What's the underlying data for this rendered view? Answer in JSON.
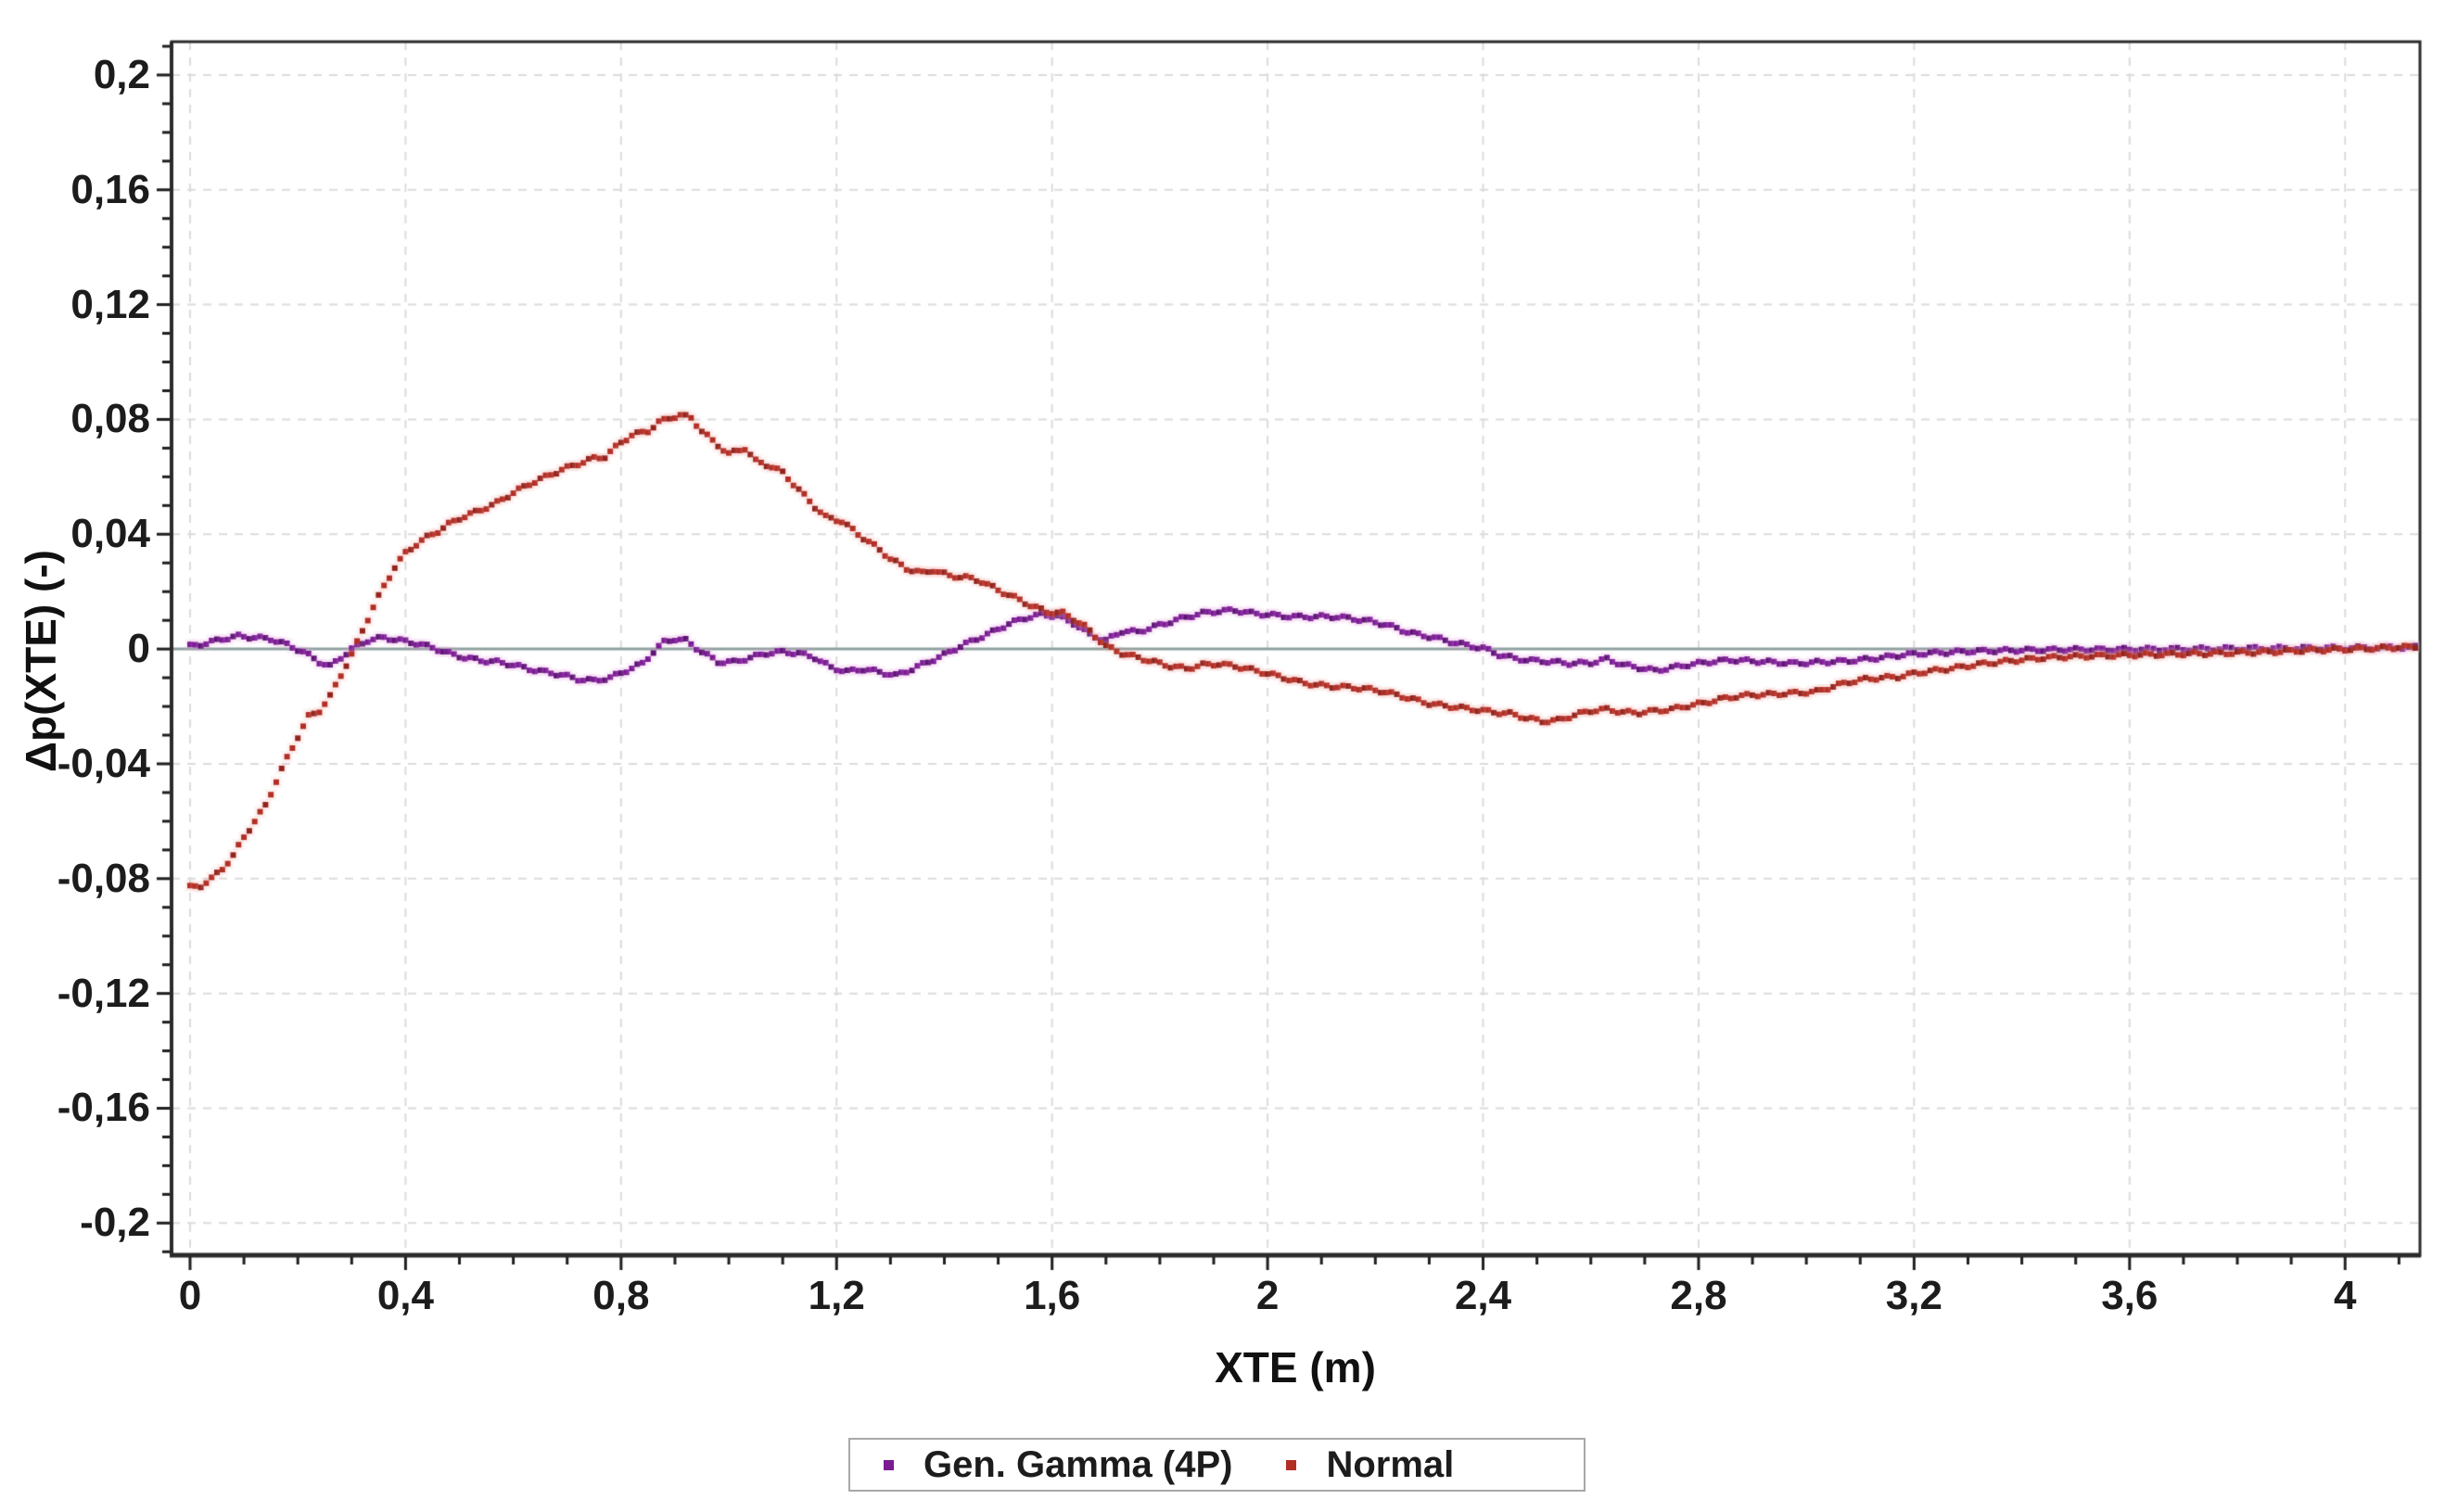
{
  "chart_data": {
    "type": "scatter",
    "title": "",
    "xlabel": "XTE (m)",
    "ylabel": "Δp(XTE) (-)",
    "xlim": [
      -0.0344,
      4.139
    ],
    "ylim": [
      -0.2112,
      0.2116
    ],
    "x_ticks_major": [
      0,
      0.4,
      0.8,
      1.2,
      1.6,
      2,
      2.4,
      2.8,
      3.2,
      3.6,
      4
    ],
    "x_tick_labels": [
      "0",
      "0,4",
      "0,8",
      "1,2",
      "1,6",
      "2",
      "2,4",
      "2,8",
      "3,2",
      "3,6",
      "4"
    ],
    "x_minor_step": 0.1,
    "x_minor_range": [
      0,
      4.1
    ],
    "y_ticks_major": [
      0.2,
      0.16,
      0.12,
      0.08,
      0.04,
      0,
      -0.04,
      -0.08,
      -0.12,
      -0.16,
      -0.2
    ],
    "y_tick_labels": [
      "0,2",
      "0,16",
      "0,12",
      "0,08",
      "0,04",
      "0",
      "-0,04",
      "-0,08",
      "-0,12",
      "-0,16",
      "-0,2"
    ],
    "y_minor_step": 0.01,
    "y_minor_range": [
      -0.21,
      0.21
    ],
    "grid": "major-dashed",
    "grid_color": "#dcdcdc",
    "zero_line_color": "#8ea19f",
    "border_color": "#2b2b2b",
    "tick_color": "#1f1f1f",
    "legend_position": "bottom-center",
    "marker": "square",
    "series": [
      {
        "name": "Gen. Gamma (4P)",
        "color": "#7a1b94",
        "color_dark": "#5e1276",
        "halo": "#eaa0e0",
        "points": [
          [
            0.0,
            0.001
          ],
          [
            0.03,
            0.002
          ],
          [
            0.06,
            0.0035
          ],
          [
            0.09,
            0.0045
          ],
          [
            0.12,
            0.004
          ],
          [
            0.15,
            0.0035
          ],
          [
            0.18,
            0.0015
          ],
          [
            0.21,
            -0.001
          ],
          [
            0.24,
            -0.0045
          ],
          [
            0.26,
            -0.006
          ],
          [
            0.28,
            -0.003
          ],
          [
            0.3,
            0.0
          ],
          [
            0.33,
            0.003
          ],
          [
            0.36,
            0.004
          ],
          [
            0.39,
            0.003
          ],
          [
            0.42,
            0.002
          ],
          [
            0.45,
            0.0005
          ],
          [
            0.48,
            -0.0015
          ],
          [
            0.51,
            -0.003
          ],
          [
            0.54,
            -0.004
          ],
          [
            0.57,
            -0.0045
          ],
          [
            0.6,
            -0.0055
          ],
          [
            0.63,
            -0.007
          ],
          [
            0.66,
            -0.008
          ],
          [
            0.69,
            -0.009
          ],
          [
            0.72,
            -0.0105
          ],
          [
            0.75,
            -0.011
          ],
          [
            0.78,
            -0.01
          ],
          [
            0.81,
            -0.0075
          ],
          [
            0.84,
            -0.005
          ],
          [
            0.86,
            -0.001
          ],
          [
            0.88,
            0.0025
          ],
          [
            0.9,
            0.0035
          ],
          [
            0.92,
            0.003
          ],
          [
            0.95,
            -0.001
          ],
          [
            0.98,
            -0.0045
          ],
          [
            1.01,
            -0.0045
          ],
          [
            1.04,
            -0.003
          ],
          [
            1.07,
            -0.0015
          ],
          [
            1.1,
            -0.001
          ],
          [
            1.13,
            -0.0015
          ],
          [
            1.16,
            -0.003
          ],
          [
            1.19,
            -0.0065
          ],
          [
            1.22,
            -0.0078
          ],
          [
            1.25,
            -0.007
          ],
          [
            1.28,
            -0.008
          ],
          [
            1.31,
            -0.0092
          ],
          [
            1.34,
            -0.007
          ],
          [
            1.37,
            -0.0045
          ],
          [
            1.4,
            -0.002
          ],
          [
            1.43,
            0.001
          ],
          [
            1.46,
            0.0035
          ],
          [
            1.49,
            0.006
          ],
          [
            1.52,
            0.0088
          ],
          [
            1.55,
            0.0108
          ],
          [
            1.58,
            0.012
          ],
          [
            1.61,
            0.0115
          ],
          [
            1.64,
            0.009
          ],
          [
            1.67,
            0.005
          ],
          [
            1.7,
            0.003
          ],
          [
            1.73,
            0.0062
          ],
          [
            1.76,
            0.006
          ],
          [
            1.79,
            0.0078
          ],
          [
            1.82,
            0.0095
          ],
          [
            1.85,
            0.0112
          ],
          [
            1.88,
            0.0125
          ],
          [
            1.91,
            0.0132
          ],
          [
            1.94,
            0.0135
          ],
          [
            1.97,
            0.0125
          ],
          [
            2.0,
            0.012
          ],
          [
            2.03,
            0.0115
          ],
          [
            2.06,
            0.0112
          ],
          [
            2.1,
            0.0113
          ],
          [
            2.13,
            0.0112
          ],
          [
            2.16,
            0.0105
          ],
          [
            2.19,
            0.0097
          ],
          [
            2.22,
            0.0085
          ],
          [
            2.25,
            0.0065
          ],
          [
            2.28,
            0.005
          ],
          [
            2.31,
            0.004
          ],
          [
            2.34,
            0.0025
          ],
          [
            2.37,
            0.0013
          ],
          [
            2.4,
            0.0003
          ],
          [
            2.43,
            -0.002
          ],
          [
            2.46,
            -0.0033
          ],
          [
            2.49,
            -0.004
          ],
          [
            2.52,
            -0.0043
          ],
          [
            2.56,
            -0.005
          ],
          [
            2.6,
            -0.0048
          ],
          [
            2.63,
            -0.0035
          ],
          [
            2.66,
            -0.0055
          ],
          [
            2.69,
            -0.0065
          ],
          [
            2.72,
            -0.0075
          ],
          [
            2.75,
            -0.0065
          ],
          [
            2.78,
            -0.0055
          ],
          [
            2.82,
            -0.0045
          ],
          [
            2.86,
            -0.0038
          ],
          [
            2.9,
            -0.0042
          ],
          [
            2.94,
            -0.0046
          ],
          [
            2.98,
            -0.005
          ],
          [
            3.02,
            -0.0046
          ],
          [
            3.06,
            -0.0043
          ],
          [
            3.1,
            -0.0038
          ],
          [
            3.14,
            -0.003
          ],
          [
            3.18,
            -0.002
          ],
          [
            3.22,
            -0.0015
          ],
          [
            3.26,
            -0.0012
          ],
          [
            3.3,
            -0.0008
          ],
          [
            3.35,
            -0.0006
          ],
          [
            3.4,
            -0.0004
          ],
          [
            3.45,
            -0.0003
          ],
          [
            3.5,
            -0.0002
          ],
          [
            3.55,
            -0.0002
          ],
          [
            3.6,
            -0.0001
          ],
          [
            3.7,
            0.0
          ],
          [
            3.8,
            0.0002
          ],
          [
            3.9,
            0.0003
          ],
          [
            4.0,
            0.0004
          ],
          [
            4.06,
            0.0005
          ],
          [
            4.13,
            0.0006
          ]
        ]
      },
      {
        "name": "Normal",
        "color": "#b22e25",
        "color_dark": "#93231c",
        "halo": "#f0a59b",
        "points": [
          [
            0.0,
            -0.083
          ],
          [
            0.02,
            -0.0825
          ],
          [
            0.04,
            -0.08
          ],
          [
            0.06,
            -0.0765
          ],
          [
            0.08,
            -0.072
          ],
          [
            0.1,
            -0.0655
          ],
          [
            0.12,
            -0.06
          ],
          [
            0.14,
            -0.0545
          ],
          [
            0.16,
            -0.046
          ],
          [
            0.18,
            -0.038
          ],
          [
            0.2,
            -0.0305
          ],
          [
            0.22,
            -0.0235
          ],
          [
            0.24,
            -0.0215
          ],
          [
            0.26,
            -0.0165
          ],
          [
            0.28,
            -0.009
          ],
          [
            0.3,
            -0.002
          ],
          [
            0.32,
            0.0065
          ],
          [
            0.34,
            0.0145
          ],
          [
            0.36,
            0.022
          ],
          [
            0.38,
            0.0285
          ],
          [
            0.4,
            0.0335
          ],
          [
            0.42,
            0.0365
          ],
          [
            0.44,
            0.039
          ],
          [
            0.46,
            0.041
          ],
          [
            0.48,
            0.0435
          ],
          [
            0.5,
            0.0455
          ],
          [
            0.52,
            0.047
          ],
          [
            0.54,
            0.0485
          ],
          [
            0.57,
            0.051
          ],
          [
            0.6,
            0.0545
          ],
          [
            0.63,
            0.0575
          ],
          [
            0.66,
            0.06
          ],
          [
            0.69,
            0.0625
          ],
          [
            0.72,
            0.0645
          ],
          [
            0.75,
            0.0665
          ],
          [
            0.77,
            0.067
          ],
          [
            0.8,
            0.072
          ],
          [
            0.82,
            0.0745
          ],
          [
            0.85,
            0.076
          ],
          [
            0.87,
            0.079
          ],
          [
            0.89,
            0.0805
          ],
          [
            0.91,
            0.0815
          ],
          [
            0.93,
            0.0805
          ],
          [
            0.95,
            0.076
          ],
          [
            0.97,
            0.0725
          ],
          [
            1.0,
            0.068
          ],
          [
            1.03,
            0.07
          ],
          [
            1.05,
            0.0655
          ],
          [
            1.08,
            0.0635
          ],
          [
            1.1,
            0.0615
          ],
          [
            1.13,
            0.0555
          ],
          [
            1.16,
            0.0495
          ],
          [
            1.18,
            0.046
          ],
          [
            1.21,
            0.0445
          ],
          [
            1.24,
            0.04
          ],
          [
            1.27,
            0.036
          ],
          [
            1.3,
            0.0315
          ],
          [
            1.33,
            0.028
          ],
          [
            1.36,
            0.0265
          ],
          [
            1.38,
            0.0275
          ],
          [
            1.41,
            0.0255
          ],
          [
            1.44,
            0.025
          ],
          [
            1.47,
            0.0235
          ],
          [
            1.5,
            0.0205
          ],
          [
            1.53,
            0.018
          ],
          [
            1.56,
            0.0152
          ],
          [
            1.59,
            0.013
          ],
          [
            1.62,
            0.0125
          ],
          [
            1.64,
            0.0105
          ],
          [
            1.66,
            0.008
          ],
          [
            1.68,
            0.0045
          ],
          [
            1.7,
            0.001
          ],
          [
            1.73,
            -0.0015
          ],
          [
            1.76,
            -0.003
          ],
          [
            1.79,
            -0.0045
          ],
          [
            1.82,
            -0.006
          ],
          [
            1.85,
            -0.0068
          ],
          [
            1.88,
            -0.0055
          ],
          [
            1.91,
            -0.0052
          ],
          [
            1.94,
            -0.006
          ],
          [
            1.97,
            -0.0072
          ],
          [
            2.0,
            -0.0085
          ],
          [
            2.03,
            -0.01
          ],
          [
            2.06,
            -0.0115
          ],
          [
            2.09,
            -0.0125
          ],
          [
            2.12,
            -0.013
          ],
          [
            2.15,
            -0.0133
          ],
          [
            2.18,
            -0.0138
          ],
          [
            2.21,
            -0.0146
          ],
          [
            2.24,
            -0.016
          ],
          [
            2.27,
            -0.0175
          ],
          [
            2.3,
            -0.019
          ],
          [
            2.33,
            -0.0198
          ],
          [
            2.36,
            -0.0205
          ],
          [
            2.39,
            -0.0212
          ],
          [
            2.42,
            -0.022
          ],
          [
            2.45,
            -0.0225
          ],
          [
            2.48,
            -0.024
          ],
          [
            2.51,
            -0.0252
          ],
          [
            2.54,
            -0.0248
          ],
          [
            2.57,
            -0.023
          ],
          [
            2.6,
            -0.0215
          ],
          [
            2.63,
            -0.021
          ],
          [
            2.66,
            -0.022
          ],
          [
            2.69,
            -0.0222
          ],
          [
            2.72,
            -0.0215
          ],
          [
            2.75,
            -0.021
          ],
          [
            2.78,
            -0.0198
          ],
          [
            2.81,
            -0.0188
          ],
          [
            2.84,
            -0.0175
          ],
          [
            2.87,
            -0.0165
          ],
          [
            2.9,
            -0.016
          ],
          [
            2.93,
            -0.0158
          ],
          [
            2.96,
            -0.0155
          ],
          [
            2.99,
            -0.0152
          ],
          [
            3.02,
            -0.0148
          ],
          [
            3.05,
            -0.013
          ],
          [
            3.08,
            -0.0115
          ],
          [
            3.11,
            -0.0105
          ],
          [
            3.14,
            -0.01
          ],
          [
            3.17,
            -0.0097
          ],
          [
            3.2,
            -0.0085
          ],
          [
            3.23,
            -0.0077
          ],
          [
            3.26,
            -0.007
          ],
          [
            3.29,
            -0.0062
          ],
          [
            3.32,
            -0.0053
          ],
          [
            3.35,
            -0.0047
          ],
          [
            3.38,
            -0.0041
          ],
          [
            3.41,
            -0.0036
          ],
          [
            3.44,
            -0.0031
          ],
          [
            3.47,
            -0.0028
          ],
          [
            3.5,
            -0.0026
          ],
          [
            3.54,
            -0.0024
          ],
          [
            3.58,
            -0.0022
          ],
          [
            3.62,
            -0.002
          ],
          [
            3.66,
            -0.0019
          ],
          [
            3.7,
            -0.0017
          ],
          [
            3.74,
            -0.0016
          ],
          [
            3.78,
            -0.0014
          ],
          [
            3.82,
            -0.0012
          ],
          [
            3.86,
            -0.001
          ],
          [
            3.9,
            -0.0007
          ],
          [
            3.94,
            -0.0004
          ],
          [
            3.98,
            -0.0002
          ],
          [
            4.02,
            0.0
          ],
          [
            4.06,
            0.0003
          ],
          [
            4.09,
            0.0005
          ],
          [
            4.13,
            0.0008
          ]
        ]
      }
    ]
  }
}
